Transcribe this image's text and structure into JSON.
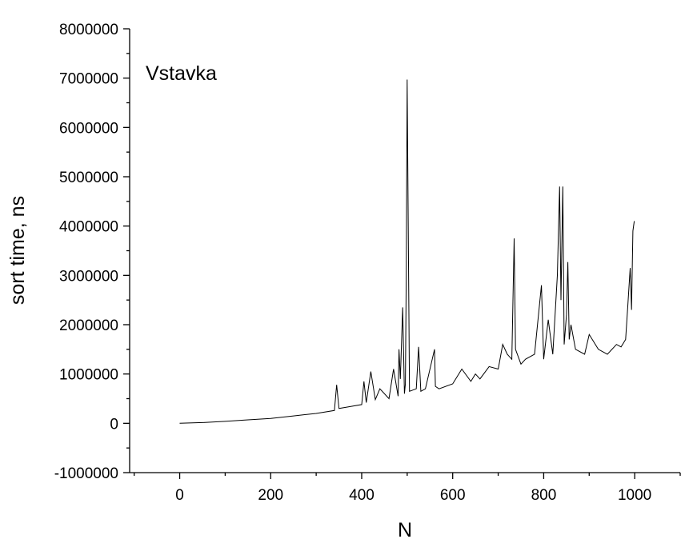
{
  "chart_data": {
    "type": "line",
    "title": "",
    "annotation": "Vstavka",
    "xlabel": "N",
    "ylabel": "sort time, ns",
    "xlim": [
      -110,
      1100
    ],
    "ylim": [
      -1000000,
      8000000
    ],
    "x_ticks": [
      0,
      200,
      400,
      600,
      800,
      1000
    ],
    "x_tick_labels": [
      "0",
      "200",
      "400",
      "600",
      "800",
      "1000"
    ],
    "y_ticks": [
      -1000000,
      0,
      1000000,
      2000000,
      3000000,
      4000000,
      5000000,
      6000000,
      7000000,
      8000000
    ],
    "y_tick_labels": [
      "-1000000",
      "0",
      "1000000",
      "2000000",
      "3000000",
      "4000000",
      "5000000",
      "6000000",
      "7000000",
      "8000000"
    ],
    "grid": false,
    "legend": "none",
    "series": [
      {
        "color": "#000000",
        "x": [
          0,
          50,
          100,
          150,
          200,
          250,
          300,
          340,
          345,
          350,
          400,
          405,
          410,
          420,
          430,
          440,
          460,
          470,
          480,
          482,
          485,
          490,
          494,
          496,
          498,
          500,
          505,
          520,
          525,
          530,
          540,
          560,
          562,
          570,
          600,
          620,
          640,
          650,
          660,
          680,
          700,
          710,
          720,
          730,
          735,
          738,
          750,
          760,
          780,
          795,
          800,
          810,
          820,
          830,
          835,
          838,
          842,
          845,
          850,
          853,
          856,
          860,
          870,
          890,
          900,
          920,
          940,
          960,
          970,
          980,
          985,
          990,
          993,
          996,
          999
        ],
        "y": [
          0,
          15000,
          40000,
          70000,
          100000,
          150000,
          200000,
          260000,
          780000,
          300000,
          380000,
          850000,
          420000,
          1050000,
          480000,
          700000,
          500000,
          1100000,
          550000,
          1500000,
          900000,
          2350000,
          600000,
          800000,
          3100000,
          6970000,
          650000,
          700000,
          1550000,
          650000,
          700000,
          1500000,
          750000,
          700000,
          800000,
          1100000,
          850000,
          1000000,
          900000,
          1150000,
          1100000,
          1600000,
          1400000,
          1300000,
          3750000,
          1500000,
          1200000,
          1300000,
          1400000,
          2800000,
          1300000,
          2100000,
          1400000,
          3000000,
          4800000,
          2500000,
          4800000,
          1600000,
          2200000,
          3270000,
          1700000,
          2000000,
          1500000,
          1400000,
          1800000,
          1500000,
          1400000,
          1600000,
          1550000,
          1700000,
          2400000,
          3150000,
          2300000,
          3900000,
          4100000
        ]
      }
    ]
  }
}
